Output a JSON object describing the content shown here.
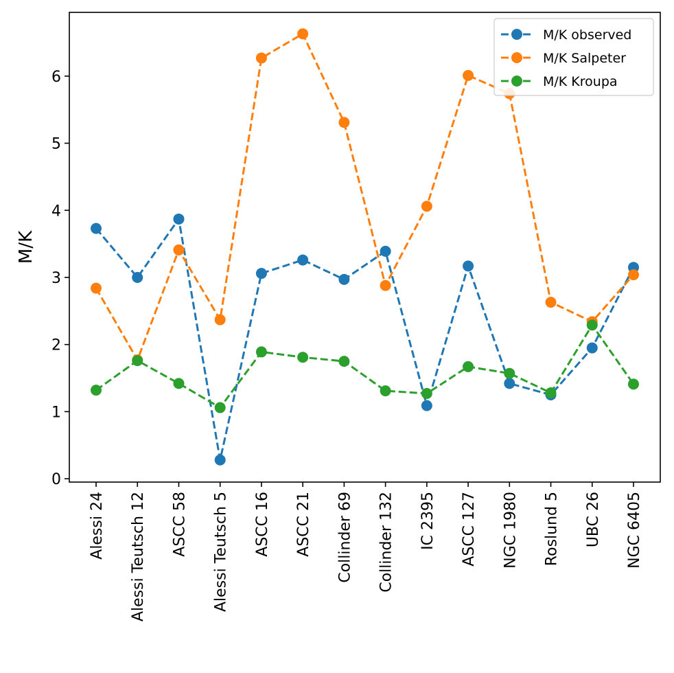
{
  "chart_data": {
    "type": "line",
    "title": "",
    "xlabel": "",
    "ylabel": "M/K",
    "ylim": [
      -0.05,
      6.95
    ],
    "yticks": [
      0,
      1,
      2,
      3,
      4,
      5,
      6
    ],
    "categories": [
      "Alessi 24",
      "Alessi Teutsch 12",
      "ASCC 58",
      "Alessi Teutsch 5",
      "ASCC 16",
      "ASCC 21",
      "Collinder 69",
      "Collinder 132",
      "IC 2395",
      "ASCC 127",
      "NGC 1980",
      "Roslund 5",
      "UBC 26",
      "NGC 6405"
    ],
    "legend_position": "top-right",
    "grid": false,
    "series": [
      {
        "name": "M/K observed",
        "color": "#1f77b4",
        "values": [
          3.73,
          3.0,
          3.87,
          0.28,
          3.06,
          3.26,
          2.97,
          3.39,
          1.09,
          3.17,
          1.42,
          1.25,
          1.95,
          3.15
        ]
      },
      {
        "name": "M/K Salpeter",
        "color": "#ff7f0e",
        "values": [
          2.84,
          1.77,
          3.41,
          2.37,
          6.27,
          6.63,
          5.31,
          2.88,
          4.06,
          6.01,
          5.74,
          2.63,
          2.34,
          3.04
        ]
      },
      {
        "name": "M/K Kroupa",
        "color": "#2ca02c",
        "values": [
          1.32,
          1.76,
          1.42,
          1.06,
          1.89,
          1.81,
          1.75,
          1.31,
          1.27,
          1.67,
          1.57,
          1.28,
          2.29,
          1.41
        ]
      }
    ]
  }
}
